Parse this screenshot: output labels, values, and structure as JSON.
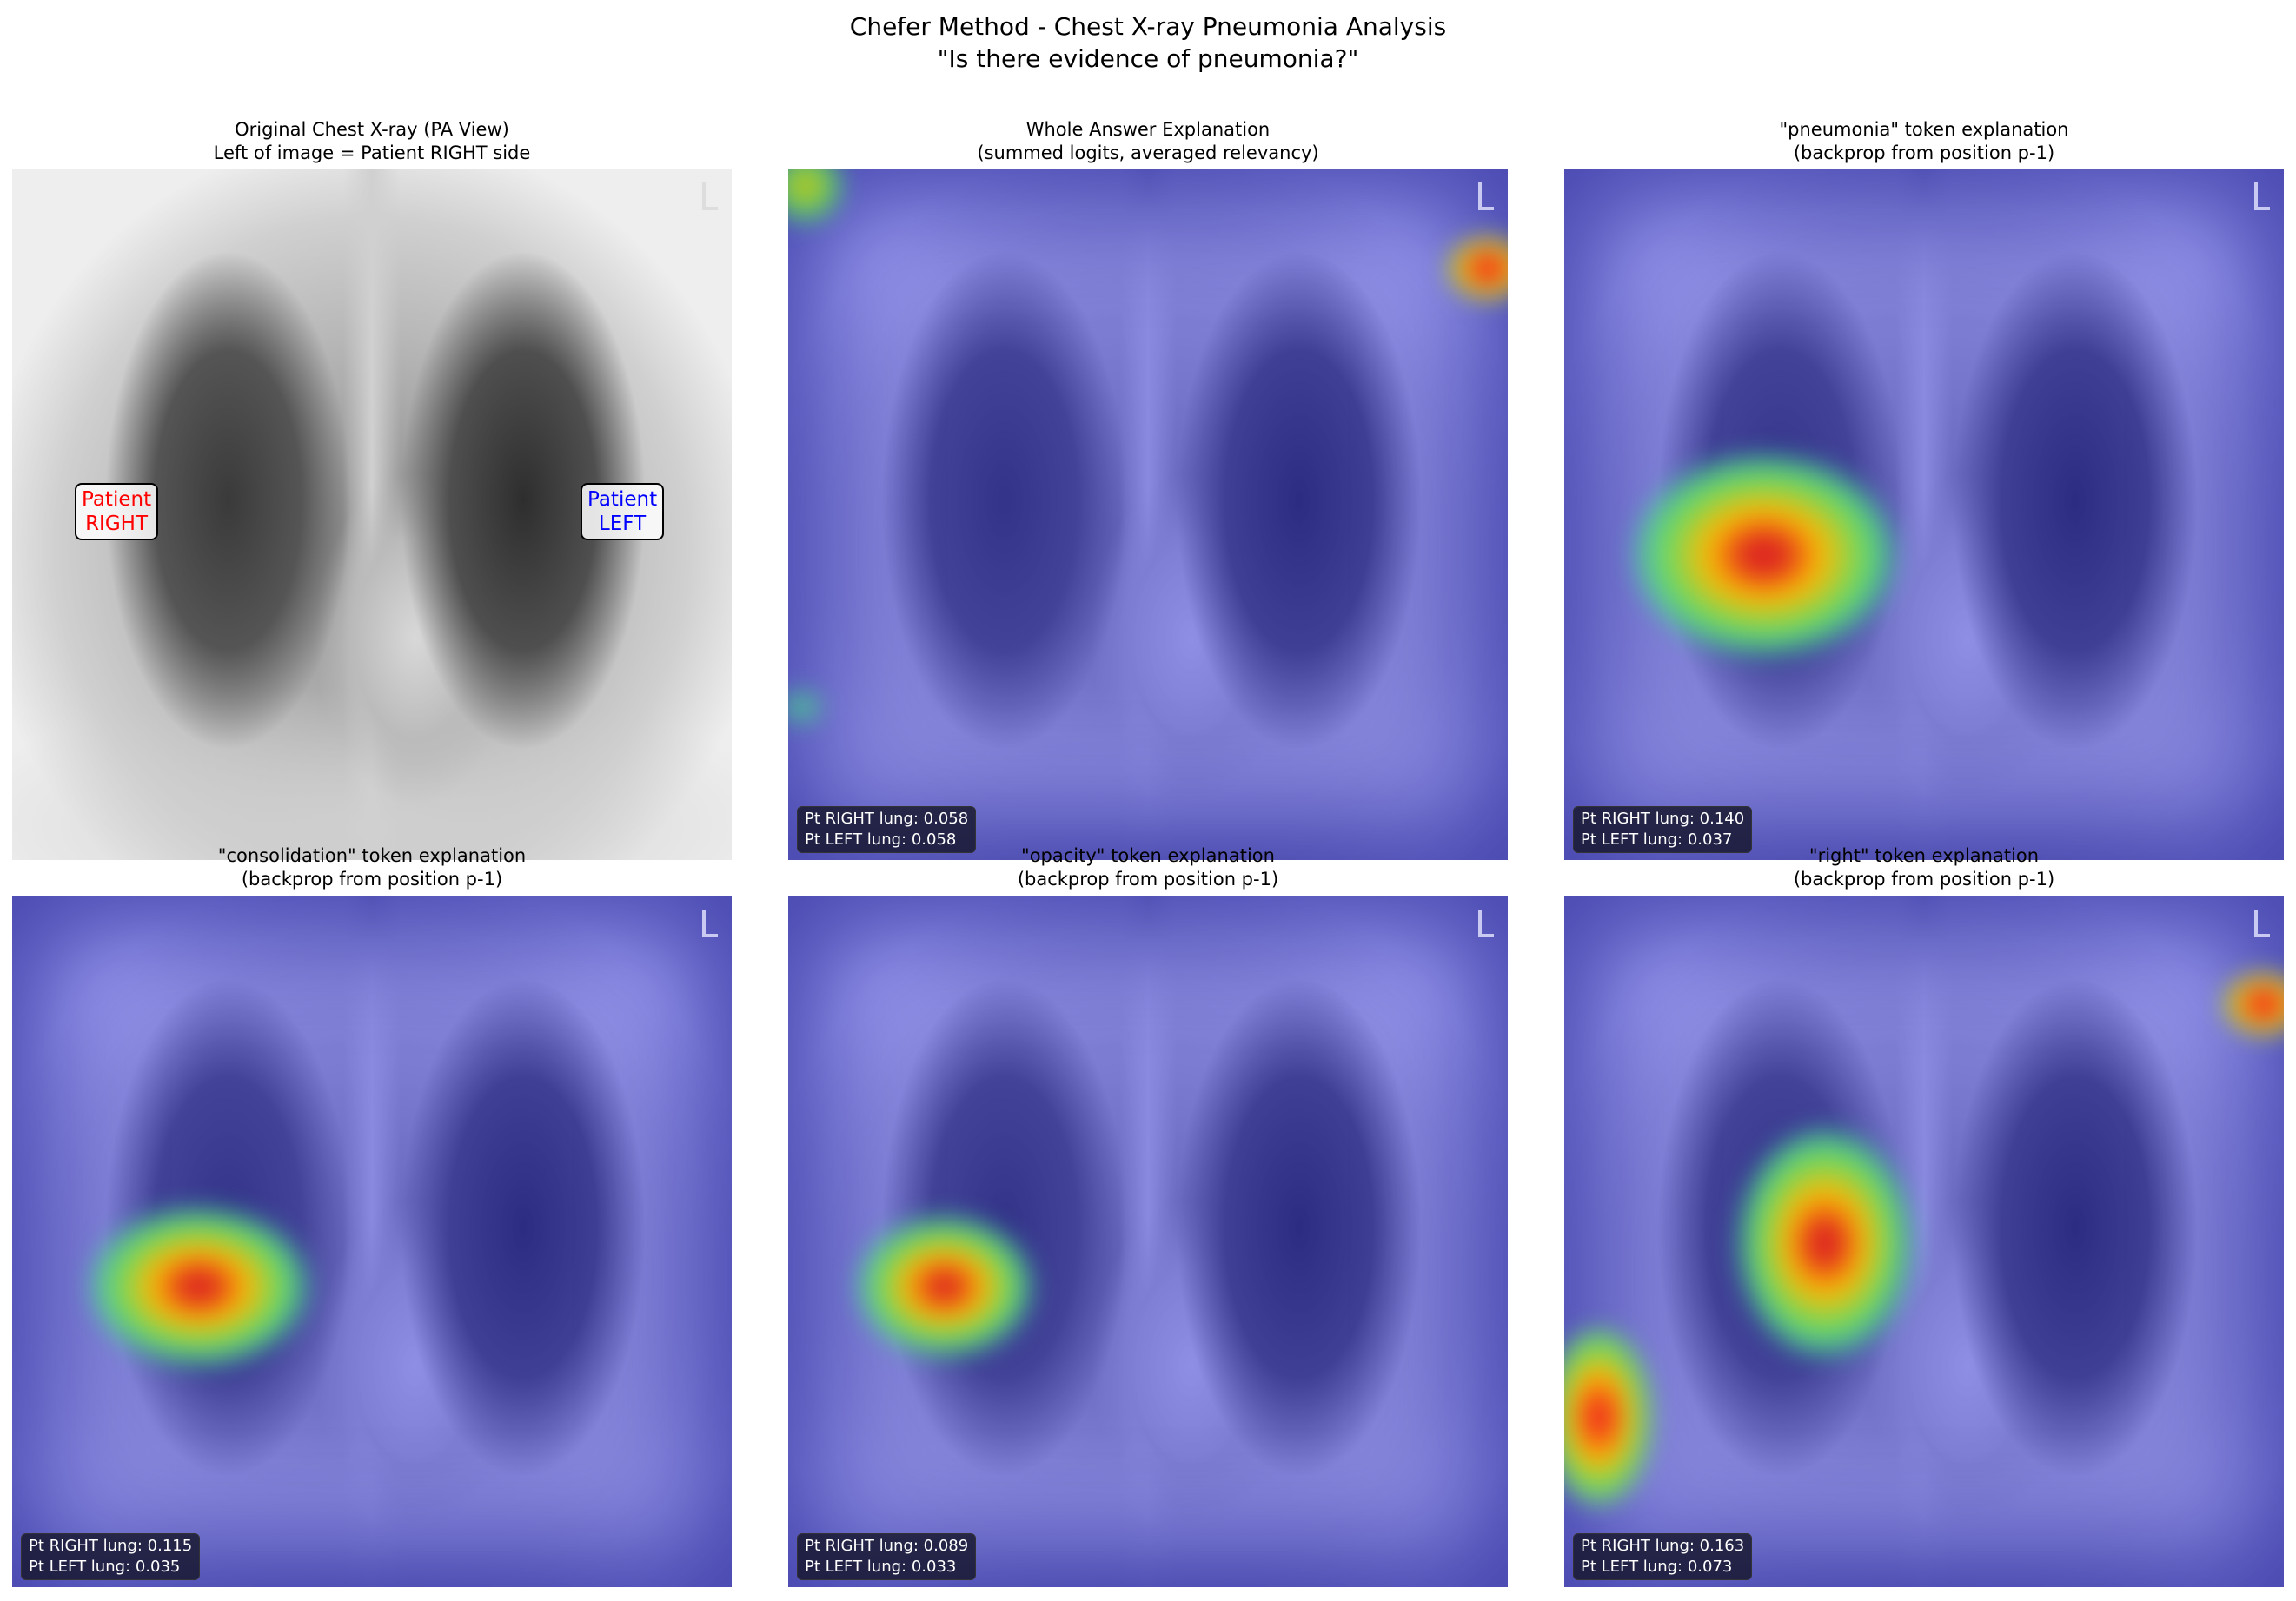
{
  "figure": {
    "title_line1": "Chefer Method - Chest X-ray Pneumonia Analysis",
    "title_line2": "\"Is there evidence of pneumonia?\""
  },
  "panels": [
    {
      "title": "Original Chest X-ray (PA View)",
      "subtitle": "Left of image = Patient RIGHT side",
      "label_right": [
        "Patient",
        "RIGHT"
      ],
      "label_left": [
        "Patient",
        "LEFT"
      ],
      "label_right_color": "#ff0000",
      "label_left_color": "#0000ff"
    },
    {
      "title": "Whole Answer Explanation",
      "subtitle": "(summed logits, averaged relevancy)",
      "right_lung": "Pt RIGHT lung: 0.058",
      "left_lung": "Pt LEFT lung: 0.058"
    },
    {
      "title": "\"pneumonia\" token explanation",
      "subtitle": "(backprop from position p-1)",
      "right_lung": "Pt RIGHT lung: 0.140",
      "left_lung": "Pt LEFT lung: 0.037"
    },
    {
      "title": "\"consolidation\" token explanation",
      "subtitle": "(backprop from position p-1)",
      "right_lung": "Pt RIGHT lung: 0.115",
      "left_lung": "Pt LEFT lung: 0.035"
    },
    {
      "title": "\"opacity\" token explanation",
      "subtitle": "(backprop from position p-1)",
      "right_lung": "Pt RIGHT lung: 0.089",
      "left_lung": "Pt LEFT lung: 0.033"
    },
    {
      "title": "\"right\" token explanation",
      "subtitle": "(backprop from position p-1)",
      "right_lung": "Pt RIGHT lung: 0.163",
      "left_lung": "Pt LEFT lung: 0.073"
    }
  ],
  "colormap": "jet"
}
